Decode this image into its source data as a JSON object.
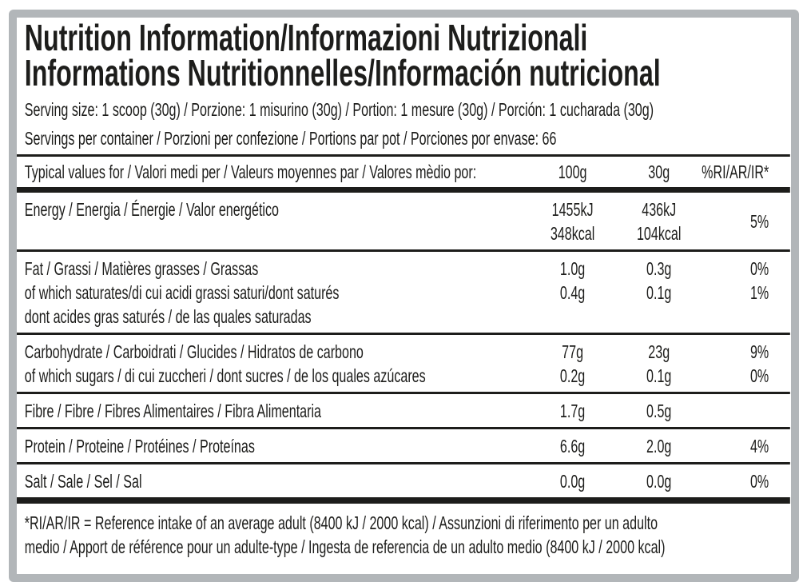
{
  "colors": {
    "frame": "#b2b6b9",
    "ink": "#1d1d1b",
    "paper": "#ffffff"
  },
  "title": {
    "line1": "Nutrition Information/Informazioni Nutrizionali",
    "line2": "Informations Nutritionnelles/Información nutricional"
  },
  "serving": {
    "line1": "Serving size: 1 scoop (30g) / Porzione: 1 misurino (30g) / Portion: 1 mesure (30g) / Porción: 1 cucharada (30g)",
    "line2": "Servings per container / Porzioni per confezione / Portions par pot / Porciones por envase: 66"
  },
  "table": {
    "header": {
      "label": "Typical values for / Valori medi per / Valeurs moyennes par / Valores mèdio por:",
      "col_100g": "100g",
      "col_30g": "30g",
      "col_ri": "%RI/AR/IR*"
    },
    "rows": [
      {
        "name": [
          "Energy / Energia / Énergie / Valor energético"
        ],
        "per100": [
          "1455kJ",
          "348kcal"
        ],
        "per30": [
          "436kJ",
          "104kcal"
        ],
        "ri": [
          "5%"
        ],
        "ri_center": true
      },
      {
        "name": [
          "Fat / Grassi / Matières grasses / Grassas",
          "of which saturates/di cui acidi grassi saturi/dont saturés",
          "dont acides gras saturés / de las quales saturadas"
        ],
        "per100": [
          "1.0g",
          "0.4g"
        ],
        "per30": [
          "0.3g",
          "0.1g"
        ],
        "ri": [
          "0%",
          "1%"
        ]
      },
      {
        "name": [
          "Carbohydrate / Carboidrati / Glucides / Hidratos de carbono",
          "of which sugars / di cui zuccheri / dont sucres / de los quales azúcares"
        ],
        "per100": [
          "77g",
          "0.2g"
        ],
        "per30": [
          "23g",
          "0.1g"
        ],
        "ri": [
          "9%",
          "0%"
        ]
      },
      {
        "name": [
          "Fibre / Fibre / Fibres Alimentaires / Fibra Alimentaria"
        ],
        "per100": [
          "1.7g"
        ],
        "per30": [
          "0.5g"
        ],
        "ri": []
      },
      {
        "name": [
          "Protein / Proteine / Protéines / Proteínas"
        ],
        "per100": [
          "6.6g"
        ],
        "per30": [
          "2.0g"
        ],
        "ri": [
          "4%"
        ]
      },
      {
        "name": [
          "Salt / Sale / Sel / Sal"
        ],
        "per100": [
          "0.0g"
        ],
        "per30": [
          "0.0g"
        ],
        "ri": [
          "0%"
        ]
      }
    ]
  },
  "footnote": {
    "line1": "*RI/AR/IR = Reference intake of an average adult (8400 kJ / 2000 kcal)  / Assunzioni di riferimento per un adulto",
    "line2": "medio / Apport de référence pour un adulte-type / Ingesta de referencia de un adulto medio (8400 kJ / 2000 kcal)"
  }
}
